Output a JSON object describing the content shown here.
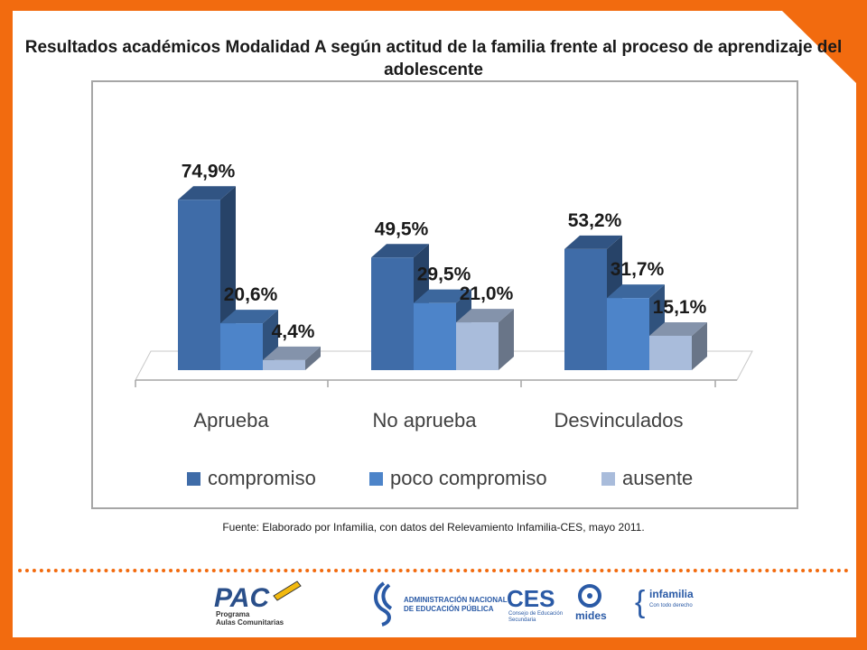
{
  "title": "Resultados académicos Modalidad A según actitud de la familia frente al proceso de aprendizaje del adolescente",
  "source_note": "Fuente: Elaborado por Infamilia, con datos del Relevamiento Infamilia-CES, mayo 2011.",
  "colors": {
    "frame": "#f26b0f",
    "compromiso": "#3f6ca8",
    "poco_compromiso": "#4d84c9",
    "ausente": "#a9bcdb"
  },
  "chart_data": {
    "type": "bar",
    "style": "3d-clustered-column",
    "title": "Resultados académicos Modalidad A según actitud de la familia frente al proceso de aprendizaje del adolescente",
    "categories": [
      "Aprueba",
      "No aprueba",
      "Desvinculados"
    ],
    "series": [
      {
        "name": "compromiso",
        "values": [
          74.9,
          49.5,
          53.2
        ],
        "labels": [
          "74,9%",
          "49,5%",
          "53,2%"
        ],
        "color": "#3f6ca8"
      },
      {
        "name": "poco compromiso",
        "values": [
          20.6,
          29.5,
          31.7
        ],
        "labels": [
          "20,6%",
          "29,5%",
          "31,7%"
        ],
        "color": "#4d84c9"
      },
      {
        "name": "ausente",
        "values": [
          4.4,
          21.0,
          15.1
        ],
        "labels": [
          "4,4%",
          "21,0%",
          "15,1%"
        ],
        "color": "#a9bcdb"
      }
    ],
    "ylim": [
      0,
      100
    ],
    "grid": false,
    "legend": "bottom"
  },
  "logos": {
    "pac": {
      "mark": "PAC",
      "line1": "Programa",
      "line2": "Aulas Comunitarias"
    },
    "anep": {
      "line1": "ADMINISTRACIÓN NACIONAL",
      "line2": "DE EDUCACIÓN PÚBLICA"
    },
    "ces": {
      "mark": "CES",
      "line1": "Consejo de Educación",
      "line2": "Secundaria"
    },
    "mides": {
      "mark": "mides"
    },
    "infamilia": {
      "mark": "infamilia",
      "line1": "Con todo derecho"
    }
  }
}
